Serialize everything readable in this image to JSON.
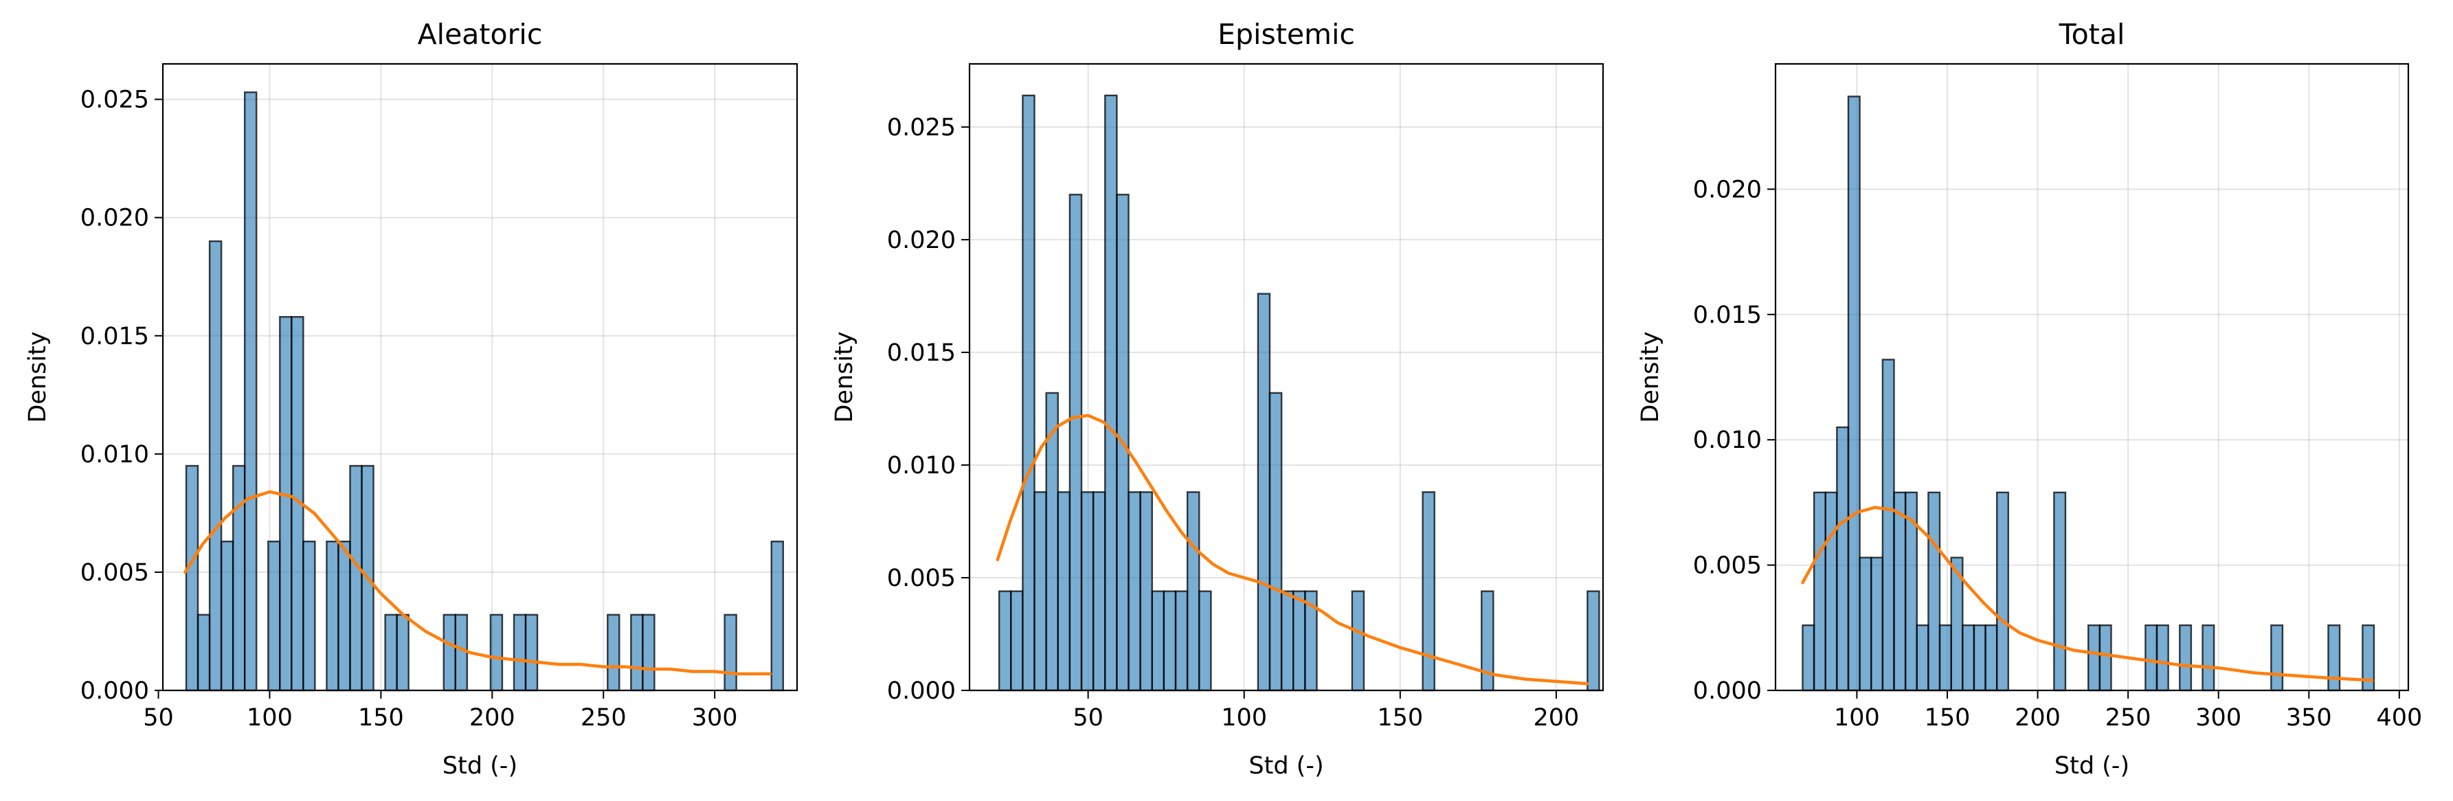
{
  "chart_data": [
    {
      "type": "histogram",
      "title": "Aleatoric",
      "xlabel": "Std (-)",
      "ylabel": "Density",
      "xlim": [
        52,
        337
      ],
      "ylim": [
        0,
        0.0265
      ],
      "xticks": [
        50,
        100,
        150,
        200,
        250,
        300
      ],
      "yticks": [
        0.0,
        0.005,
        0.01,
        0.015,
        0.02,
        0.025
      ],
      "ytick_labels": [
        "0.000",
        "0.005",
        "0.010",
        "0.015",
        "0.020",
        "0.025"
      ],
      "grid": true,
      "bin_start": 62.5,
      "bin_width": 5.26,
      "bin_values": [
        0.0095,
        0.0032,
        0.019,
        0.0063,
        0.0095,
        0.0253,
        0,
        0.0063,
        0.0158,
        0.0158,
        0.0063,
        0,
        0.0063,
        0.0063,
        0.0095,
        0.0095,
        0,
        0.0032,
        0.0032,
        0,
        0,
        0,
        0.0032,
        0.0032,
        0,
        0,
        0.0032,
        0,
        0.0032,
        0.0032,
        0,
        0,
        0,
        0,
        0,
        0,
        0.0032,
        0,
        0.0032,
        0.0032,
        0,
        0,
        0,
        0,
        0,
        0,
        0.0032,
        0,
        0,
        0,
        0.0063
      ],
      "kde": {
        "x": [
          62,
          70,
          80,
          90,
          100,
          110,
          120,
          130,
          140,
          150,
          160,
          170,
          180,
          190,
          200,
          210,
          220,
          230,
          240,
          250,
          260,
          270,
          280,
          290,
          300,
          310,
          325
        ],
        "y": [
          0.005,
          0.0062,
          0.0073,
          0.0081,
          0.0084,
          0.0082,
          0.0075,
          0.0064,
          0.0052,
          0.0041,
          0.0032,
          0.0025,
          0.002,
          0.0016,
          0.0014,
          0.0013,
          0.0012,
          0.0011,
          0.0011,
          0.001,
          0.001,
          0.0009,
          0.0009,
          0.0008,
          0.0008,
          0.0007,
          0.0007
        ]
      }
    },
    {
      "type": "histogram",
      "title": "Epistemic",
      "xlabel": "Std (-)",
      "ylabel": "Density",
      "xlim": [
        12,
        215
      ],
      "ylim": [
        0,
        0.0278
      ],
      "xticks": [
        50,
        100,
        150,
        200
      ],
      "yticks": [
        0.0,
        0.005,
        0.01,
        0.015,
        0.02,
        0.025
      ],
      "ytick_labels": [
        "0.000",
        "0.005",
        "0.010",
        "0.015",
        "0.020",
        "0.025"
      ],
      "grid": true,
      "bin_start": 21.5,
      "bin_width": 3.77,
      "bin_values": [
        0.0044,
        0.0044,
        0.0264,
        0.0088,
        0.0132,
        0.0088,
        0.022,
        0.0088,
        0.0088,
        0.0264,
        0.022,
        0.0088,
        0.0088,
        0.0044,
        0.0044,
        0.0044,
        0.0088,
        0.0044,
        0,
        0,
        0,
        0,
        0.0176,
        0.0132,
        0.0044,
        0.0044,
        0.0044,
        0,
        0,
        0,
        0.0044,
        0,
        0,
        0,
        0,
        0,
        0.0088,
        0,
        0,
        0,
        0,
        0.0044,
        0,
        0,
        0,
        0,
        0,
        0,
        0,
        0,
        0.0044
      ],
      "kde": {
        "x": [
          21,
          25,
          30,
          35,
          40,
          45,
          50,
          55,
          60,
          65,
          70,
          75,
          80,
          85,
          90,
          95,
          100,
          105,
          110,
          115,
          120,
          125,
          130,
          140,
          150,
          160,
          170,
          180,
          190,
          200,
          210
        ],
        "y": [
          0.0058,
          0.0075,
          0.0094,
          0.0108,
          0.0117,
          0.0121,
          0.0122,
          0.0119,
          0.0112,
          0.0102,
          0.0091,
          0.008,
          0.007,
          0.0062,
          0.0056,
          0.0052,
          0.005,
          0.0048,
          0.0045,
          0.0042,
          0.0039,
          0.0035,
          0.003,
          0.0024,
          0.0019,
          0.0015,
          0.0011,
          0.0007,
          0.0005,
          0.0004,
          0.0003
        ]
      }
    },
    {
      "type": "histogram",
      "title": "Total",
      "xlabel": "Std (-)",
      "ylabel": "Density",
      "xlim": [
        55,
        405
      ],
      "ylim": [
        0,
        0.025
      ],
      "xticks": [
        100,
        150,
        200,
        250,
        300,
        350,
        400
      ],
      "yticks": [
        0.0,
        0.005,
        0.01,
        0.015,
        0.02
      ],
      "ytick_labels": [
        "0.000",
        "0.005",
        "0.010",
        "0.015",
        "0.020"
      ],
      "grid": true,
      "bin_start": 70,
      "bin_width": 6.32,
      "bin_values": [
        0.0026,
        0.0079,
        0.0079,
        0.0105,
        0.0237,
        0.0053,
        0.0053,
        0.0132,
        0.0079,
        0.0079,
        0.0026,
        0.0079,
        0.0026,
        0.0053,
        0.0026,
        0.0026,
        0.0026,
        0.0079,
        0,
        0,
        0,
        0,
        0.0079,
        0,
        0,
        0.0026,
        0.0026,
        0,
        0,
        0,
        0.0026,
        0.0026,
        0,
        0.0026,
        0,
        0.0026,
        0,
        0,
        0,
        0,
        0,
        0.0026,
        0,
        0,
        0,
        0,
        0.0026,
        0,
        0,
        0.0026
      ],
      "kde": {
        "x": [
          70,
          80,
          90,
          100,
          110,
          120,
          130,
          140,
          150,
          160,
          170,
          180,
          190,
          200,
          220,
          240,
          260,
          280,
          300,
          320,
          340,
          360,
          385
        ],
        "y": [
          0.0043,
          0.0056,
          0.0066,
          0.0071,
          0.0073,
          0.0072,
          0.0068,
          0.0061,
          0.0052,
          0.0043,
          0.0035,
          0.0028,
          0.0023,
          0.002,
          0.0016,
          0.0014,
          0.0012,
          0.001,
          0.0009,
          0.0007,
          0.0006,
          0.0005,
          0.0004
        ]
      }
    }
  ]
}
